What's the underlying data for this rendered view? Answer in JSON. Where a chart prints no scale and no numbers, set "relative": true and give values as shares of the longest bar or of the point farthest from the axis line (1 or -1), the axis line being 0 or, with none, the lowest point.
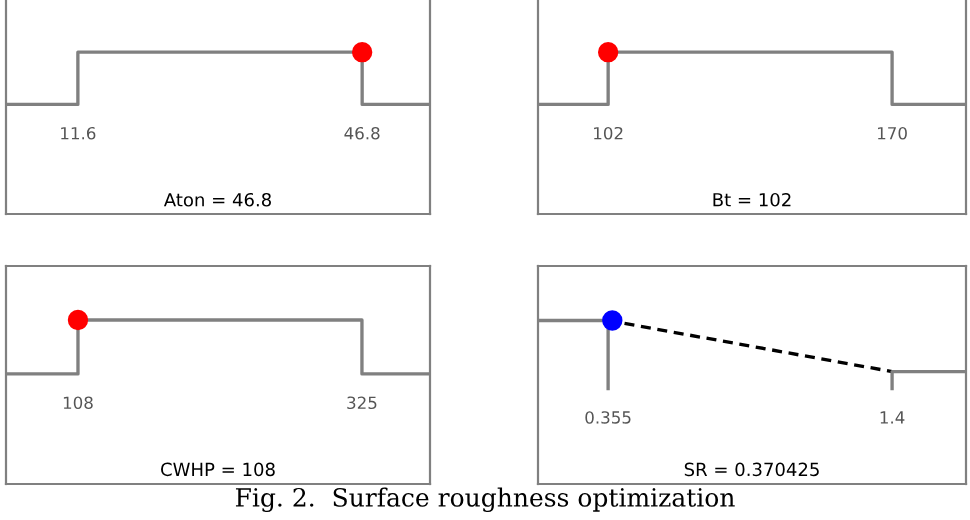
{
  "chart_data": [
    {
      "type": "line",
      "relative": true,
      "xlabel": "Aton = 46.8",
      "xlim": [
        2.7,
        55.2
      ],
      "xticks": [
        11.6,
        46.8
      ],
      "tick_labels": "x",
      "series": [
        {
          "type": "line",
          "color": "#808080",
          "line_style": "solid",
          "x": [
            2.7,
            11.6,
            11.6,
            46.8,
            46.8,
            55.2
          ],
          "values": [
            0,
            0,
            1,
            1,
            0,
            0
          ]
        },
        {
          "type": "scatter",
          "color": "#ff0000",
          "marker": "circle",
          "x": [
            46.8
          ],
          "values": [
            1
          ]
        }
      ]
    },
    {
      "type": "line",
      "relative": true,
      "xlabel": "Bt = 102",
      "xlim": [
        85.2,
        187.7
      ],
      "xticks": [
        102,
        170
      ],
      "tick_labels": "x",
      "series": [
        {
          "type": "line",
          "color": "#808080",
          "line_style": "solid",
          "x": [
            85.2,
            102,
            102,
            170,
            170,
            187.7
          ],
          "values": [
            0,
            0,
            1,
            1,
            0,
            0
          ]
        },
        {
          "type": "scatter",
          "color": "#ff0000",
          "marker": "circle",
          "x": [
            102
          ],
          "values": [
            1
          ]
        }
      ]
    },
    {
      "type": "line",
      "relative": true,
      "xlabel": "CWHP = 108",
      "xlim": [
        53,
        377
      ],
      "xticks": [
        108,
        325
      ],
      "tick_labels": "x",
      "series": [
        {
          "type": "line",
          "color": "#808080",
          "line_style": "solid",
          "x": [
            53,
            108,
            108,
            325,
            325,
            377
          ],
          "values": [
            0,
            0,
            1,
            1,
            0,
            0
          ]
        },
        {
          "type": "scatter",
          "color": "#ff0000",
          "marker": "circle",
          "x": [
            108
          ],
          "values": [
            1
          ]
        }
      ]
    },
    {
      "type": "line",
      "relative": true,
      "xlabel": "SR = 0.370425",
      "xlim": [
        0.097,
        1.672
      ],
      "xticks": [
        0.355,
        1.4
      ],
      "tick_labels": "x",
      "annotations": [
        "Fig. 2.  Surface roughness optimization"
      ],
      "series": [
        {
          "type": "line",
          "color": "#808080",
          "line_style": "solid",
          "x": [
            0.097,
            0.355,
            0.355
          ],
          "values": [
            1,
            1,
            0
          ]
        },
        {
          "type": "line",
          "color": "#000000",
          "line_style": "dashed",
          "x": [
            0.355,
            1.4
          ],
          "values": [
            1,
            0.25
          ]
        },
        {
          "type": "line",
          "color": "#808080",
          "line_style": "solid",
          "x": [
            1.4,
            1.4,
            1.672
          ],
          "values": [
            0,
            0.25,
            0.25
          ]
        },
        {
          "type": "scatter",
          "color": "#0000ff",
          "marker": "circle",
          "x": [
            0.370425
          ],
          "values": [
            1
          ]
        }
      ]
    }
  ]
}
